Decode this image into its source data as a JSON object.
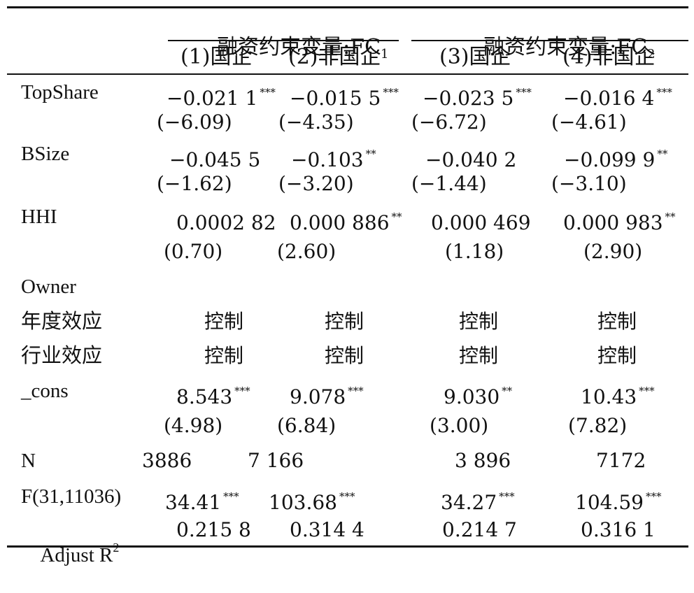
{
  "header": {
    "group1": {
      "prefix": "融资约束变量:FC",
      "sub": "1"
    },
    "group2": {
      "prefix": "融资约束变量:FC",
      "sub": "2"
    },
    "columns": [
      "(1)国企",
      "(2)非国企",
      "(3)国企",
      "(4)非国企"
    ]
  },
  "rows": [
    {
      "label": "TopShare",
      "coef": [
        {
          "v": "−0.021 1",
          "s": "***"
        },
        {
          "v": "−0.015 5",
          "s": "***"
        },
        {
          "v": "−0.023 5",
          "s": "***"
        },
        {
          "v": "−0.016 4",
          "s": "***"
        }
      ],
      "t": [
        "(−6.09)",
        "(−4.35)",
        "(−6.72)",
        "(−4.61)"
      ]
    },
    {
      "label": "BSize",
      "coef": [
        {
          "v": "−0.045 5",
          "s": ""
        },
        {
          "v": "−0.103",
          "s": "**"
        },
        {
          "v": "−0.040 2",
          "s": ""
        },
        {
          "v": "−0.099 9",
          "s": "**"
        }
      ],
      "t": [
        "(−1.62)",
        "(−3.20)",
        "(−1.44)",
        "(−3.10)"
      ]
    },
    {
      "label": "HHI",
      "coef": [
        {
          "v": "0.0002 82",
          "s": ""
        },
        {
          "v": "0.000 886",
          "s": "**"
        },
        {
          "v": "0.000 469",
          "s": ""
        },
        {
          "v": "0.000 983",
          "s": "**"
        }
      ],
      "t": [
        "(0.70)",
        "(2.60)",
        "(1.18)",
        "(2.90)"
      ]
    },
    {
      "label": "Owner"
    },
    {
      "label": "年度效应",
      "coef": [
        {
          "v": "控制",
          "s": ""
        },
        {
          "v": "控制",
          "s": ""
        },
        {
          "v": "控制",
          "s": ""
        },
        {
          "v": "控制",
          "s": ""
        }
      ]
    },
    {
      "label": "行业效应",
      "coef": [
        {
          "v": "控制",
          "s": ""
        },
        {
          "v": "控制",
          "s": ""
        },
        {
          "v": "控制",
          "s": ""
        },
        {
          "v": "控制",
          "s": ""
        }
      ]
    },
    {
      "label": "_cons",
      "coef": [
        {
          "v": "8.543",
          "s": "***"
        },
        {
          "v": "9.078",
          "s": "***"
        },
        {
          "v": "9.030",
          "s": "**"
        },
        {
          "v": "10.43",
          "s": "***"
        }
      ],
      "t": [
        "(4.98)",
        "(6.84)",
        "(3.00)",
        "(7.82)"
      ]
    },
    {
      "label": "N",
      "coef": [
        {
          "v": "3886",
          "s": ""
        },
        {
          "v": "7 166",
          "s": ""
        },
        {
          "v": "3 896",
          "s": ""
        },
        {
          "v": "7172",
          "s": ""
        }
      ]
    },
    {
      "label": "F(31,11036)",
      "coef": [
        {
          "v": "34.41",
          "s": "***"
        },
        {
          "v": "103.68",
          "s": "***"
        },
        {
          "v": "34.27",
          "s": "***"
        },
        {
          "v": "104.59",
          "s": "***"
        }
      ]
    },
    {
      "label": "Adjust R",
      "label_sup": "2",
      "coef": [
        {
          "v": "0.215 8",
          "s": ""
        },
        {
          "v": "0.314 4",
          "s": ""
        },
        {
          "v": "0.214 7",
          "s": ""
        },
        {
          "v": "0.316 1",
          "s": ""
        }
      ]
    }
  ]
}
